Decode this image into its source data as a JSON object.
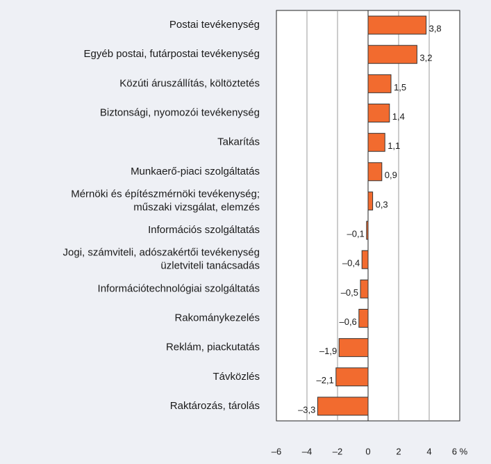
{
  "chart_data": {
    "type": "hbar",
    "categories": [
      "Postai tevékenység",
      "Egyéb postai, futárpostai tevékenység",
      "Közúti áruszállítás, költöztetés",
      "Biztonsági, nyomozói tevékenység",
      "Takarítás",
      "Munkaerő-piaci szolgáltatás",
      "Mérnöki és építészmérnöki tevékenység;\nműszaki vizsgálat, elemzés",
      "Információs szolgáltatás",
      "Jogi, számviteli, adószakértői tevékenység\nüzletviteli tanácsadás",
      "Információtechnológiai szolgáltatás",
      "Rakománykezelés",
      "Reklám, piackutatás",
      "Távközlés",
      "Raktározás, tárolás"
    ],
    "values": [
      3.8,
      3.2,
      1.5,
      1.4,
      1.1,
      0.9,
      0.3,
      -0.1,
      -0.4,
      -0.5,
      -0.6,
      -1.9,
      -2.1,
      -3.3
    ],
    "value_labels": [
      "3,8",
      "3,2",
      "1,5",
      "1,4",
      "1,1",
      "0,9",
      "0,3",
      "–0,1",
      "–0,4",
      "–0,5",
      "–0,6",
      "–1,9",
      "–2,1",
      "–3,3"
    ],
    "color": "#f26b2f",
    "xlim": [
      -6,
      6
    ],
    "xticks": [
      {
        "value": -6,
        "label": "–6"
      },
      {
        "value": -4,
        "label": "–4"
      },
      {
        "value": -2,
        "label": "–2"
      },
      0,
      2,
      4,
      {
        "value": 6,
        "label": "6 %"
      }
    ],
    "grid": true
  }
}
